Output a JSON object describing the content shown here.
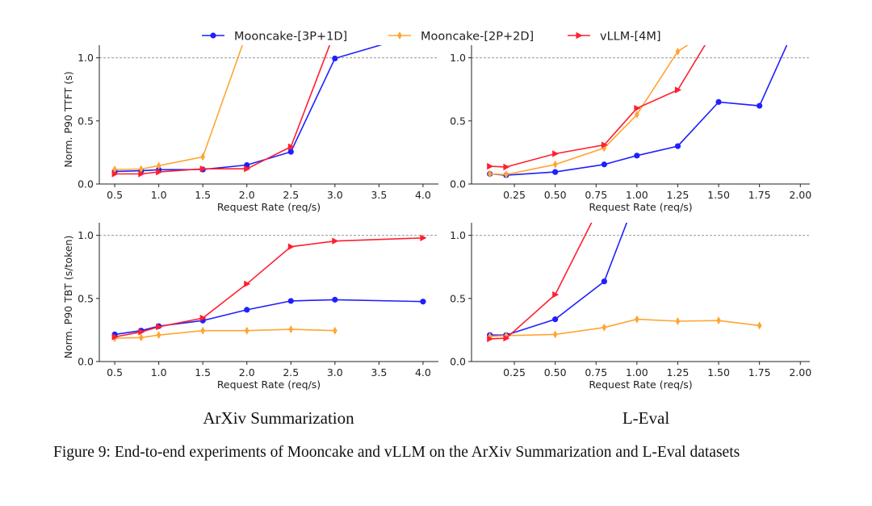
{
  "legend": [
    {
      "name": "Mooncake-[3P+1D]",
      "color": "#1f1fff",
      "marker": "circle"
    },
    {
      "name": "Mooncake-[2P+2D]",
      "color": "#ffa533",
      "marker": "thin_diamond"
    },
    {
      "name": "vLLM-[4M]",
      "color": "#ff1f2f",
      "marker": "triangle-right"
    }
  ],
  "dataset_labels": [
    "ArXiv Summarization",
    "L-Eval"
  ],
  "caption": "Figure 9: End-to-end experiments of Mooncake and vLLM on the ArXiv Summarization and L-Eval datasets",
  "chart_data": [
    {
      "type": "line",
      "dataset": "ArXiv Summarization",
      "xlabel": "Request Rate (req/s)",
      "ylabel": "Norm. P90 TTFT (s)",
      "xlim": [
        0.325,
        4.175
      ],
      "ylim": [
        0,
        1.1
      ],
      "xticks": [
        "0.5",
        "1.0",
        "1.5",
        "2.0",
        "2.5",
        "3.0",
        "3.5",
        "4.0"
      ],
      "yticks": [
        "0.0",
        "0.5",
        "1.0"
      ],
      "reference_line": 1.0,
      "series": [
        {
          "name": "Mooncake-[3P+1D]",
          "x": [
            0.5,
            0.8,
            1.0,
            1.5,
            2.0,
            2.5,
            3.0,
            4.0
          ],
          "y": [
            0.1,
            0.105,
            0.113,
            0.115,
            0.15,
            0.255,
            0.995,
            1.2
          ]
        },
        {
          "name": "Mooncake-[2P+2D]",
          "x": [
            0.5,
            0.8,
            1.0,
            1.5,
            2.0
          ],
          "y": [
            0.115,
            0.118,
            0.145,
            0.215,
            1.2
          ]
        },
        {
          "name": "vLLM-[4M]",
          "x": [
            0.5,
            0.8,
            1.0,
            1.5,
            2.0,
            2.5,
            3.0
          ],
          "y": [
            0.08,
            0.08,
            0.095,
            0.12,
            0.12,
            0.295,
            1.21
          ]
        }
      ]
    },
    {
      "type": "line",
      "dataset": "L-Eval",
      "xlabel": "Request Rate (req/s)",
      "ylabel": "",
      "xlim": [
        -0.012,
        2.058
      ],
      "ylim": [
        0,
        1.1
      ],
      "xticks": [
        "0.25",
        "0.50",
        "0.75",
        "1.00",
        "1.25",
        "1.50",
        "1.75",
        "2.00"
      ],
      "yticks": [
        "0.0",
        "0.5",
        "1.0"
      ],
      "reference_line": 1.0,
      "series": [
        {
          "name": "Mooncake-[3P+1D]",
          "x": [
            0.1,
            0.2,
            0.5,
            0.8,
            1.0,
            1.25,
            1.5,
            1.75,
            2.0
          ],
          "y": [
            0.08,
            0.07,
            0.095,
            0.155,
            0.225,
            0.3,
            0.65,
            0.62,
            1.34
          ]
        },
        {
          "name": "Mooncake-[2P+2D]",
          "x": [
            0.1,
            0.2,
            0.5,
            0.8,
            1.0,
            1.25,
            1.5
          ],
          "y": [
            0.08,
            0.075,
            0.155,
            0.285,
            0.55,
            1.05,
            1.26
          ]
        },
        {
          "name": "vLLM-[4M]",
          "x": [
            0.1,
            0.2,
            0.5,
            0.8,
            1.0,
            1.25,
            1.5
          ],
          "y": [
            0.14,
            0.135,
            0.24,
            0.31,
            0.6,
            0.745,
            1.28
          ]
        }
      ]
    },
    {
      "type": "line",
      "dataset": "ArXiv Summarization",
      "xlabel": "Request Rate (req/s)",
      "ylabel": "Norm. P90 TBT (s/token)",
      "xlim": [
        0.325,
        4.175
      ],
      "ylim": [
        0,
        1.1
      ],
      "xticks": [
        "0.5",
        "1.0",
        "1.5",
        "2.0",
        "2.5",
        "3.0",
        "3.5",
        "4.0"
      ],
      "yticks": [
        "0.0",
        "0.5",
        "1.0"
      ],
      "reference_line": 1.0,
      "series": [
        {
          "name": "Mooncake-[3P+1D]",
          "x": [
            0.5,
            0.8,
            1.0,
            1.5,
            2.0,
            2.5,
            3.0,
            4.0
          ],
          "y": [
            0.215,
            0.245,
            0.28,
            0.325,
            0.41,
            0.48,
            0.49,
            0.475
          ]
        },
        {
          "name": "Mooncake-[2P+2D]",
          "x": [
            0.5,
            0.8,
            1.0,
            1.5,
            2.0,
            2.5,
            3.0
          ],
          "y": [
            0.185,
            0.19,
            0.21,
            0.245,
            0.245,
            0.255,
            0.245
          ]
        },
        {
          "name": "vLLM-[4M]",
          "x": [
            0.5,
            0.8,
            1.0,
            1.5,
            2.0,
            2.5,
            3.0,
            4.0
          ],
          "y": [
            0.195,
            0.235,
            0.275,
            0.345,
            0.615,
            0.91,
            0.955,
            0.98
          ]
        }
      ]
    },
    {
      "type": "line",
      "dataset": "L-Eval",
      "xlabel": "Request Rate (req/s)",
      "ylabel": "",
      "xlim": [
        -0.012,
        2.058
      ],
      "ylim": [
        0,
        1.1
      ],
      "xticks": [
        "0.25",
        "0.50",
        "0.75",
        "1.00",
        "1.25",
        "1.50",
        "1.75",
        "2.00"
      ],
      "yticks": [
        "0.0",
        "0.5",
        "1.0"
      ],
      "reference_line": 1.0,
      "series": [
        {
          "name": "Mooncake-[3P+1D]",
          "x": [
            0.1,
            0.2,
            0.5,
            0.8,
            1.0
          ],
          "y": [
            0.21,
            0.21,
            0.335,
            0.635,
            1.31
          ]
        },
        {
          "name": "Mooncake-[2P+2D]",
          "x": [
            0.1,
            0.2,
            0.5,
            0.8,
            1.0,
            1.25,
            1.5,
            1.75
          ],
          "y": [
            0.2,
            0.205,
            0.215,
            0.27,
            0.335,
            0.32,
            0.325,
            0.285
          ]
        },
        {
          "name": "vLLM-[4M]",
          "x": [
            0.1,
            0.2,
            0.5,
            0.8
          ],
          "y": [
            0.18,
            0.185,
            0.53,
            1.3
          ]
        }
      ]
    }
  ]
}
